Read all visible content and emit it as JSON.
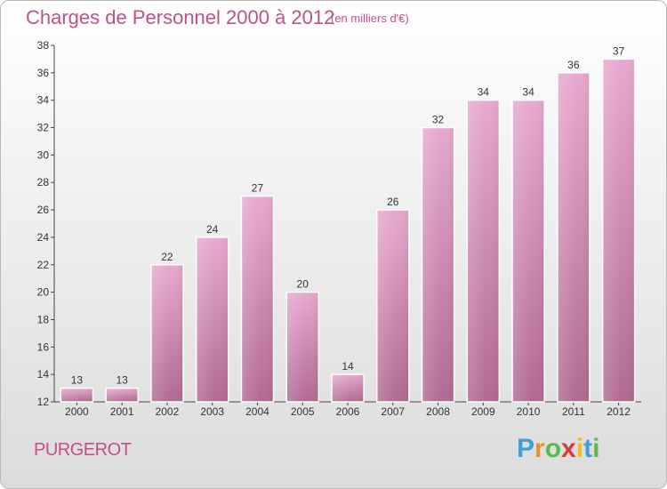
{
  "title": "Charges de Personnel 2000 à 2012",
  "subtitle": "(en milliers d'€)",
  "place": "PURGEROT",
  "logo": {
    "letters": [
      "P",
      "r",
      "o",
      "x",
      "i",
      "t",
      "i"
    ],
    "colors": [
      "#3fa0d8",
      "#e8902a",
      "#5bb84a",
      "#d83a3a",
      "#f0c020",
      "#3fa0d8",
      "#5bb84a"
    ]
  },
  "chart_data": {
    "type": "bar",
    "title": "Charges de Personnel 2000 à 2012",
    "subtitle": "(en milliers d'€)",
    "categories": [
      "2000",
      "2001",
      "2002",
      "2003",
      "2004",
      "2005",
      "2006",
      "2007",
      "2008",
      "2009",
      "2010",
      "2011",
      "2012"
    ],
    "values": [
      13,
      13,
      22,
      24,
      27,
      20,
      14,
      26,
      32,
      34,
      34,
      36,
      37
    ],
    "ylim": [
      12,
      38
    ],
    "yticks": [
      12,
      14,
      16,
      18,
      20,
      22,
      24,
      26,
      28,
      30,
      32,
      34,
      36,
      38
    ],
    "grid": false,
    "bar_color": "#c97aa8"
  }
}
